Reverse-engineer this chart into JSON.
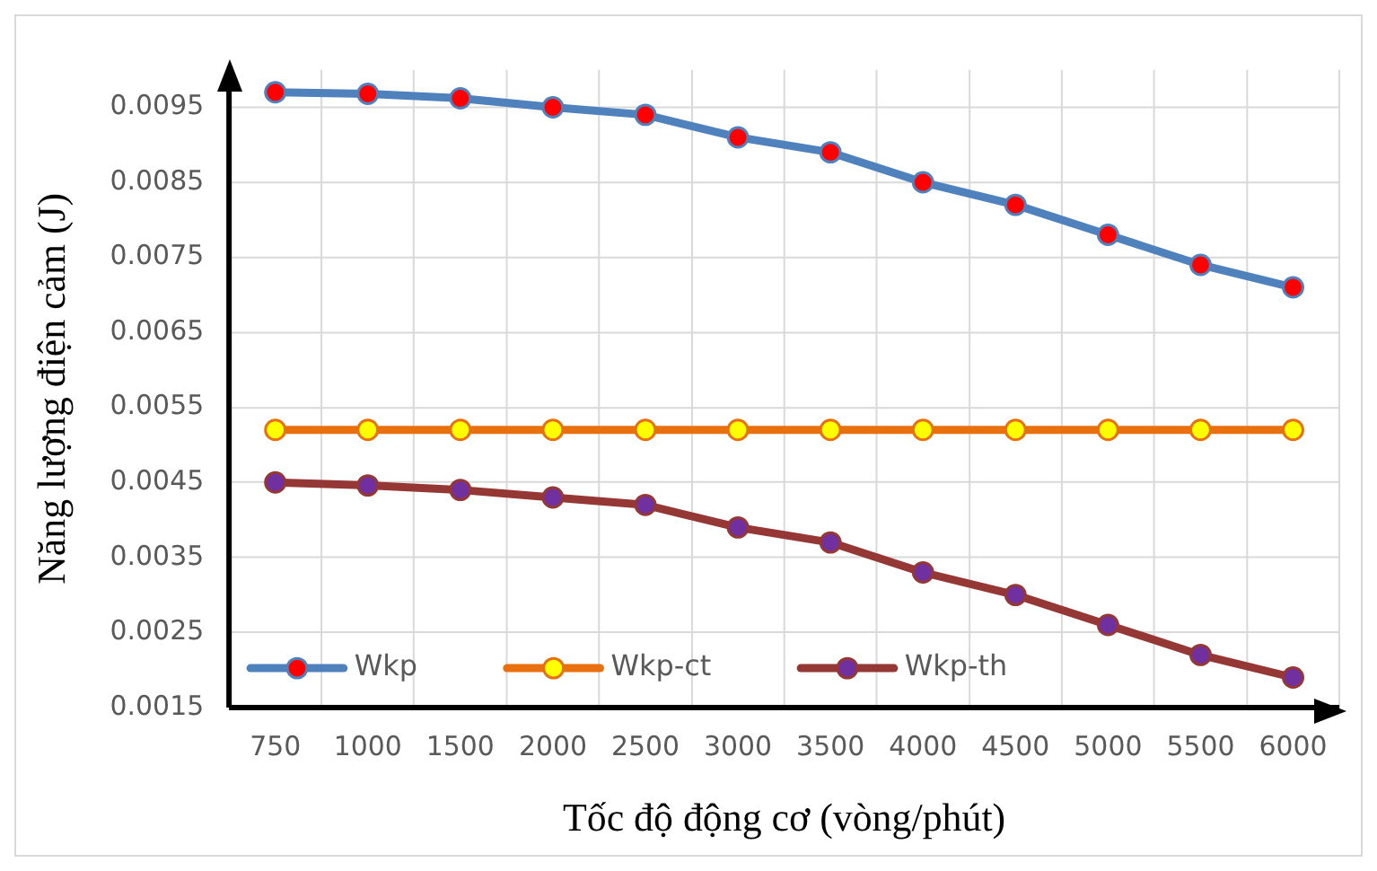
{
  "chart_data": {
    "type": "line",
    "xlabel": "Tốc độ động cơ (vòng/phút)",
    "ylabel": "Năng lượng điện cảm (J)",
    "categories": [
      "750",
      "1000",
      "1500",
      "2000",
      "2500",
      "3000",
      "3500",
      "4000",
      "4500",
      "5000",
      "5500",
      "6000"
    ],
    "series": [
      {
        "name": "Wkp",
        "color": "#4f81bd",
        "values": [
          0.0097,
          0.00968,
          0.00962,
          0.0095,
          0.0094,
          0.0091,
          0.0089,
          0.0085,
          0.0082,
          0.0078,
          0.0074,
          0.0071
        ]
      },
      {
        "name": "Wkp-ct",
        "color": "#e8700f",
        "values": [
          0.0052,
          0.0052,
          0.0052,
          0.0052,
          0.0052,
          0.0052,
          0.0052,
          0.0052,
          0.0052,
          0.0052,
          0.0052,
          0.0052
        ]
      },
      {
        "name": "Wkp-th",
        "color": "#953735",
        "values": [
          0.0045,
          0.00446,
          0.0044,
          0.0043,
          0.0042,
          0.0039,
          0.0037,
          0.0033,
          0.003,
          0.0026,
          0.0022,
          0.0019
        ]
      }
    ],
    "ylim": [
      0.0015,
      0.01
    ],
    "yticks": [
      0.0015,
      0.0025,
      0.0035,
      0.0045,
      0.0055,
      0.0065,
      0.0075,
      0.0085,
      0.0095
    ],
    "grid": true,
    "legend": "bottom left",
    "marker": "circle",
    "line_style": "solid"
  }
}
